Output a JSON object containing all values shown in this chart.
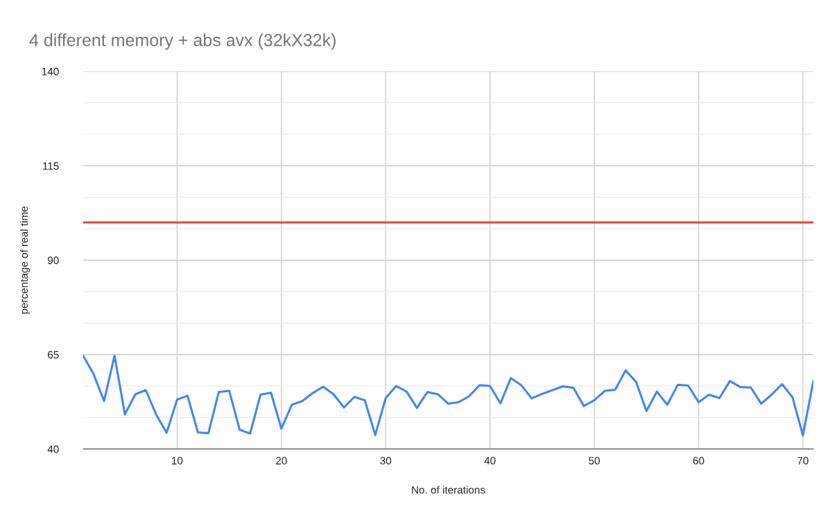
{
  "chart_data": {
    "type": "line",
    "title": "4 different memory + abs avx (32kX32k)",
    "xlabel": "No. of iterations",
    "ylabel": "percentage of real time",
    "x": [
      1,
      2,
      3,
      4,
      5,
      6,
      7,
      8,
      9,
      10,
      11,
      12,
      13,
      14,
      15,
      16,
      17,
      18,
      19,
      20,
      21,
      22,
      23,
      24,
      25,
      26,
      27,
      28,
      29,
      30,
      31,
      32,
      33,
      34,
      35,
      36,
      37,
      38,
      39,
      40,
      41,
      42,
      43,
      44,
      45,
      46,
      47,
      48,
      49,
      50,
      51,
      52,
      53,
      54,
      55,
      56,
      57,
      58,
      59,
      60,
      61,
      62,
      63,
      64,
      65,
      66,
      67,
      68,
      69,
      70,
      71
    ],
    "series": [
      {
        "color": "#4285f4",
        "values": [
          64.7,
          59.8,
          52.7,
          64.7,
          49.2,
          54.5,
          55.6,
          49.1,
          44.3,
          53.1,
          54.1,
          44.4,
          44.2,
          55.1,
          55.4,
          45.1,
          44.1,
          54.4,
          54.9,
          45.4,
          51.7,
          52.7,
          54.8,
          56.5,
          54.5,
          51.0,
          53.8,
          52.9,
          43.7,
          53.5,
          56.7,
          55.2,
          50.9,
          55.1,
          54.5,
          52.0,
          52.4,
          54.0,
          56.9,
          56.7,
          52.1,
          58.8,
          56.9,
          53.4,
          54.6,
          55.6,
          56.6,
          56.2,
          51.4,
          52.9,
          55.4,
          55.7,
          60.8,
          57.8,
          50.1,
          55.2,
          51.7,
          57.0,
          56.8,
          52.4,
          54.4,
          53.5,
          58.0,
          56.4,
          56.3,
          52.0,
          54.4,
          57.2,
          53.7,
          43.6,
          58.0
        ]
      },
      {
        "color": "#ea4335",
        "x": [
          1,
          71
        ],
        "values": [
          100,
          100
        ]
      }
    ],
    "xlim": [
      1,
      71
    ],
    "xticks": [
      10,
      20,
      30,
      40,
      50,
      60,
      70
    ],
    "ylim": [
      40,
      140
    ],
    "yticks": [
      40,
      {
        "value": 48.33,
        "label": null
      },
      {
        "value": 56.67,
        "label": null
      },
      65,
      {
        "value": 73.33,
        "label": null
      },
      {
        "value": 81.67,
        "label": null
      },
      90,
      {
        "value": 98.33,
        "label": null
      },
      {
        "value": 106.67,
        "label": null
      },
      115,
      {
        "value": 123.33,
        "label": null
      },
      {
        "value": 131.67,
        "label": null
      },
      140
    ],
    "grid": true,
    "line_style": "solid",
    "marker": "none"
  }
}
